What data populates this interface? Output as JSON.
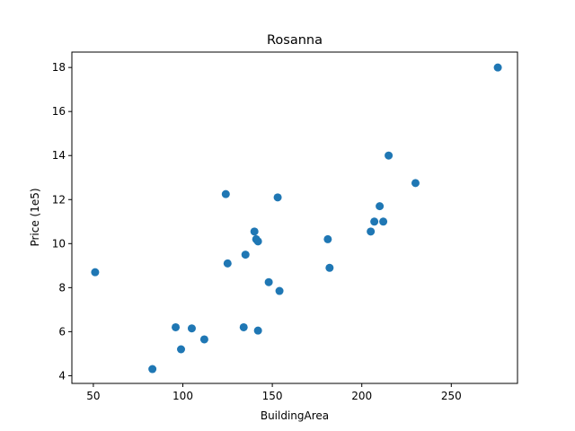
{
  "chart_data": {
    "type": "scatter",
    "title": "Rosanna",
    "xlabel": "BuildingArea",
    "ylabel": "Price (1e5)",
    "xlim": [
      38,
      287
    ],
    "ylim": [
      3.65,
      18.7
    ],
    "grid": false,
    "x_ticks": [
      50,
      100,
      150,
      200,
      250
    ],
    "y_ticks": [
      4,
      6,
      8,
      10,
      12,
      14,
      16,
      18
    ],
    "point_color": "#1f77b4",
    "points": [
      {
        "x": 51,
        "y": 8.7
      },
      {
        "x": 83,
        "y": 4.3
      },
      {
        "x": 96,
        "y": 6.2
      },
      {
        "x": 99,
        "y": 5.2
      },
      {
        "x": 105,
        "y": 6.15
      },
      {
        "x": 112,
        "y": 5.65
      },
      {
        "x": 124,
        "y": 12.25
      },
      {
        "x": 125,
        "y": 9.1
      },
      {
        "x": 134,
        "y": 6.2
      },
      {
        "x": 135,
        "y": 9.5
      },
      {
        "x": 140,
        "y": 10.55
      },
      {
        "x": 141,
        "y": 10.2
      },
      {
        "x": 142,
        "y": 10.1
      },
      {
        "x": 142,
        "y": 6.05
      },
      {
        "x": 148,
        "y": 8.25
      },
      {
        "x": 153,
        "y": 12.1
      },
      {
        "x": 154,
        "y": 7.85
      },
      {
        "x": 181,
        "y": 10.2
      },
      {
        "x": 182,
        "y": 8.9
      },
      {
        "x": 205,
        "y": 10.55
      },
      {
        "x": 207,
        "y": 11.0
      },
      {
        "x": 210,
        "y": 11.7
      },
      {
        "x": 212,
        "y": 11.0
      },
      {
        "x": 215,
        "y": 14.0
      },
      {
        "x": 230,
        "y": 12.75
      },
      {
        "x": 276,
        "y": 18.0
      }
    ]
  }
}
